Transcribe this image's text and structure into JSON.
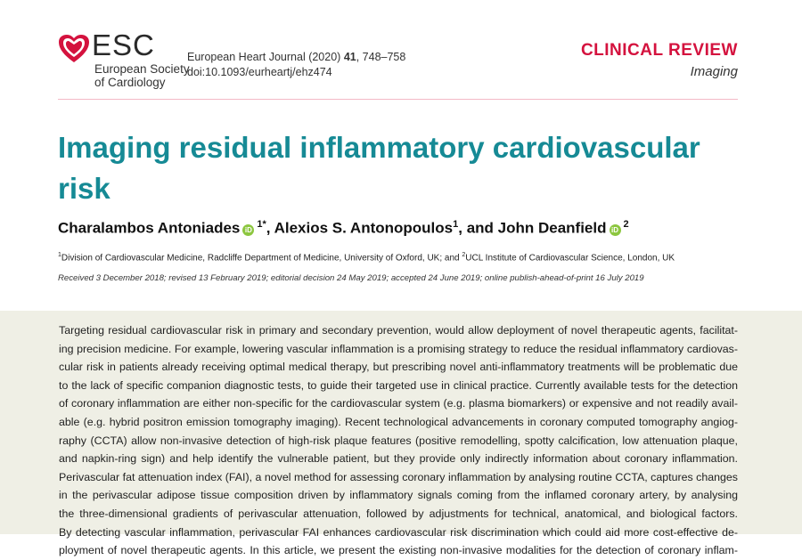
{
  "header": {
    "logo_text": "ESC",
    "society_line1": "European Society",
    "society_line2": "of Cardiology",
    "journal_name": "European Heart Journal (2020)",
    "volume": "41",
    "pages": ", 748–758",
    "doi": "doi:10.1093/eurheartj/ehz474",
    "category": "CLINICAL REVIEW",
    "subcategory": "Imaging"
  },
  "article": {
    "title": "Imaging residual inflammatory cardiovascular risk",
    "authors": [
      {
        "name": "Charalambos Antoniades",
        "sup": "1*"
      },
      {
        "name": ", Alexios S. Antonopoulos",
        "sup": "1"
      },
      {
        "name": ", and John Deanfield",
        "sup": "2"
      }
    ],
    "orcid_label": "iD",
    "affiliation_1_sup": "1",
    "affiliation_1": "Division of Cardiovascular Medicine, Radcliffe Department of Medicine, University of Oxford, UK; and ",
    "affiliation_2_sup": "2",
    "affiliation_2": "UCL Institute of Cardiovascular Science, London, UK",
    "dates": "Received 3 December 2018; revised 13 February 2019; editorial decision 24 May 2019; accepted 24 June 2019; online publish-ahead-of-print 16 July 2019",
    "abstract_lines": [
      "Targeting residual cardiovascular risk in primary and secondary prevention, would allow deployment of novel therapeutic agents, facilitat-",
      "ing precision medicine. For example, lowering vascular inflammation is a promising strategy to reduce the residual inflammatory cardiovas-",
      "cular risk in patients already receiving optimal medical therapy, but prescribing novel anti-inflammatory treatments will be problematic due",
      "to the lack of specific companion diagnostic tests, to guide their targeted use in clinical practice. Currently available tests for the detection",
      "of coronary inflammation are either non-specific for the cardiovascular system (e.g. plasma biomarkers) or expensive and not readily avail-",
      "able (e.g. hybrid positron emission tomography imaging). Recent technological advancements in coronary computed tomography angiog-",
      "raphy (CCTA) allow non-invasive detection of high-risk plaque features (positive remodelling, spotty calcification, low attenuation plaque,",
      "and napkin-ring sign) and help identify the vulnerable patient, but they provide only indirectly information about coronary inflammation.",
      "Perivascular fat attenuation index (FAI), a novel method for assessing coronary inflammation by analysing routine CCTA, captures changes",
      "in the perivascular adipose tissue composition driven by inflammatory signals coming from the inflamed coronary artery, by analysing",
      "the three-dimensional gradients of perivascular attenuation, followed by adjustments for technical, anatomical, and biological factors.",
      "By detecting vascular inflammation, perivascular FAI enhances cardiovascular risk discrimination which could aid more cost-effective de-",
      "ployment of novel therapeutic agents. In this article, we present the existing non-invasive modalities for the detection of coronary inflam-"
    ]
  },
  "colors": {
    "title": "#168a95",
    "category": "#d4123e",
    "abstract_bg": "#efefe5",
    "orcid": "#8cc63f"
  },
  "icons": {
    "logo": "esc-heart-logo",
    "orcid": "orcid-icon"
  }
}
